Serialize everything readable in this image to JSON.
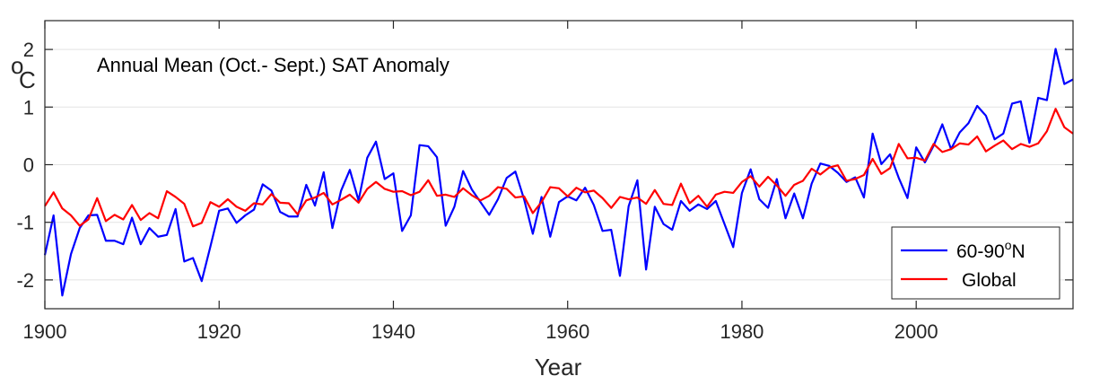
{
  "chart_data": {
    "type": "line",
    "title": "Annual Mean (Oct.- Sept.) SAT Anomaly",
    "xlabel": "Year",
    "ylabel_unit": "C",
    "ylabel_sup": "o",
    "xlim": [
      1900,
      2018
    ],
    "ylim": [
      -2.5,
      2.5
    ],
    "xticks": [
      1900,
      1920,
      1940,
      1960,
      1980,
      2000
    ],
    "xtick_labels": [
      "1900",
      "1920",
      "1940",
      "1960",
      "1980",
      "2000"
    ],
    "yticks": [
      2,
      1,
      0,
      -1,
      -2
    ],
    "ytick_labels": [
      "2",
      "1",
      "0",
      "-1",
      "-2"
    ],
    "grid": "horizontal",
    "legend_position": "bottom-right",
    "x": [
      1900,
      1901,
      1902,
      1903,
      1904,
      1905,
      1906,
      1907,
      1908,
      1909,
      1910,
      1911,
      1912,
      1913,
      1914,
      1915,
      1916,
      1917,
      1918,
      1919,
      1920,
      1921,
      1922,
      1923,
      1924,
      1925,
      1926,
      1927,
      1928,
      1929,
      1930,
      1931,
      1932,
      1933,
      1934,
      1935,
      1936,
      1937,
      1938,
      1939,
      1940,
      1941,
      1942,
      1943,
      1944,
      1945,
      1946,
      1947,
      1948,
      1949,
      1950,
      1951,
      1952,
      1953,
      1954,
      1955,
      1956,
      1957,
      1958,
      1959,
      1960,
      1961,
      1962,
      1963,
      1964,
      1965,
      1966,
      1967,
      1968,
      1969,
      1970,
      1971,
      1972,
      1973,
      1974,
      1975,
      1976,
      1977,
      1978,
      1979,
      1980,
      1981,
      1982,
      1983,
      1984,
      1985,
      1986,
      1987,
      1988,
      1989,
      1990,
      1991,
      1992,
      1993,
      1994,
      1995,
      1996,
      1997,
      1998,
      1999,
      2000,
      2001,
      2002,
      2003,
      2004,
      2005,
      2006,
      2007,
      2008,
      2009,
      2010,
      2011,
      2012,
      2013,
      2014,
      2015,
      2016,
      2017,
      2018
    ],
    "series": [
      {
        "name": "60-90",
        "legend_sup": "o",
        "legend_suffix": "N",
        "color": "#0000ff",
        "values": [
          -1.57,
          -0.88,
          -2.27,
          -1.55,
          -1.1,
          -0.88,
          -0.87,
          -1.32,
          -1.32,
          -1.38,
          -0.92,
          -1.38,
          -1.1,
          -1.25,
          -1.22,
          -0.77,
          -1.68,
          -1.62,
          -2.02,
          -1.42,
          -0.8,
          -0.76,
          -1.01,
          -0.88,
          -0.78,
          -0.34,
          -0.45,
          -0.82,
          -0.9,
          -0.9,
          -0.35,
          -0.71,
          -0.13,
          -1.1,
          -0.45,
          -0.09,
          -0.62,
          0.12,
          0.4,
          -0.25,
          -0.15,
          -1.15,
          -0.88,
          0.34,
          0.32,
          0.13,
          -1.06,
          -0.73,
          -0.11,
          -0.43,
          -0.65,
          -0.87,
          -0.6,
          -0.23,
          -0.12,
          -0.6,
          -1.2,
          -0.56,
          -1.25,
          -0.65,
          -0.55,
          -0.62,
          -0.4,
          -0.7,
          -1.15,
          -1.13,
          -1.93,
          -0.72,
          -0.27,
          -1.82,
          -0.73,
          -1.03,
          -1.13,
          -0.63,
          -0.8,
          -0.69,
          -0.77,
          -0.63,
          -1.03,
          -1.43,
          -0.49,
          -0.08,
          -0.6,
          -0.75,
          -0.25,
          -0.93,
          -0.5,
          -0.93,
          -0.33,
          0.02,
          -0.02,
          -0.14,
          -0.3,
          -0.22,
          -0.57,
          0.54,
          0.01,
          0.18,
          -0.23,
          -0.58,
          0.3,
          0.04,
          0.33,
          0.7,
          0.27,
          0.56,
          0.72,
          1.02,
          0.85,
          0.44,
          0.54,
          1.06,
          1.1,
          0.38,
          1.16,
          1.12,
          2.01,
          1.4,
          1.48
        ]
      },
      {
        "name": "Global",
        "color": "#ff0000",
        "values": [
          -0.72,
          -0.48,
          -0.76,
          -0.88,
          -1.06,
          -0.95,
          -0.58,
          -0.98,
          -0.87,
          -0.95,
          -0.7,
          -0.96,
          -0.84,
          -0.93,
          -0.46,
          -0.56,
          -0.68,
          -1.07,
          -1.01,
          -0.65,
          -0.73,
          -0.6,
          -0.73,
          -0.8,
          -0.67,
          -0.69,
          -0.51,
          -0.66,
          -0.67,
          -0.86,
          -0.62,
          -0.57,
          -0.49,
          -0.69,
          -0.61,
          -0.52,
          -0.66,
          -0.42,
          -0.3,
          -0.42,
          -0.47,
          -0.46,
          -0.53,
          -0.47,
          -0.27,
          -0.54,
          -0.52,
          -0.56,
          -0.41,
          -0.53,
          -0.62,
          -0.54,
          -0.39,
          -0.42,
          -0.57,
          -0.55,
          -0.84,
          -0.65,
          -0.39,
          -0.41,
          -0.55,
          -0.4,
          -0.48,
          -0.45,
          -0.58,
          -0.75,
          -0.56,
          -0.6,
          -0.57,
          -0.68,
          -0.44,
          -0.68,
          -0.7,
          -0.33,
          -0.67,
          -0.54,
          -0.73,
          -0.52,
          -0.47,
          -0.49,
          -0.3,
          -0.2,
          -0.38,
          -0.21,
          -0.36,
          -0.54,
          -0.35,
          -0.28,
          -0.07,
          -0.17,
          -0.05,
          -0.01,
          -0.28,
          -0.25,
          -0.18,
          0.1,
          -0.16,
          -0.06,
          0.36,
          0.11,
          0.12,
          0.07,
          0.36,
          0.22,
          0.27,
          0.37,
          0.35,
          0.49,
          0.23,
          0.33,
          0.42,
          0.27,
          0.36,
          0.31,
          0.37,
          0.58,
          0.97,
          0.65,
          0.54
        ]
      }
    ]
  }
}
